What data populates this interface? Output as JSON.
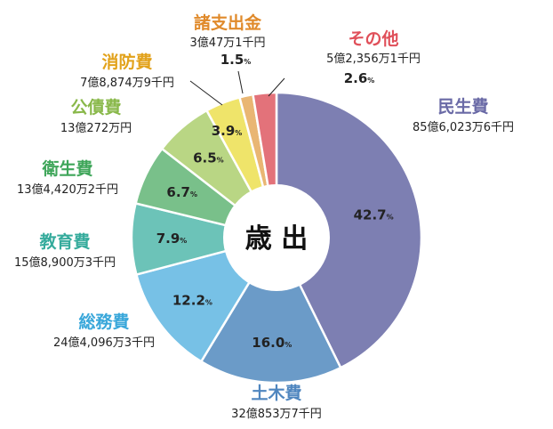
{
  "chart_data": {
    "type": "pie",
    "center_label": "歳 出",
    "percent_symbol": "%",
    "slices": [
      {
        "name": "民生費",
        "amount": "85億6,023万6千円",
        "value": 42.7,
        "value_label": "42.7",
        "color": "#7d7fb2",
        "name_color": "#6a6aa6"
      },
      {
        "name": "土木費",
        "amount": "32億853万7千円",
        "value": 16.0,
        "value_label": "16.0",
        "color": "#6b9bc8",
        "name_color": "#4f86bf"
      },
      {
        "name": "総務費",
        "amount": "24億4,096万3千円",
        "value": 12.2,
        "value_label": "12.2",
        "color": "#77c1e6",
        "name_color": "#39a7da"
      },
      {
        "name": "教育費",
        "amount": "15億8,900万3千円",
        "value": 7.9,
        "value_label": "7.9",
        "color": "#6cc3b8",
        "name_color": "#35ab9c"
      },
      {
        "name": "衛生費",
        "amount": "13億4,420万2千円",
        "value": 6.7,
        "value_label": "6.7",
        "color": "#79c08a",
        "name_color": "#3fa65a"
      },
      {
        "name": "公債費",
        "amount": "13億272万円",
        "value": 6.5,
        "value_label": "6.5",
        "color": "#b9d684",
        "name_color": "#89b84a"
      },
      {
        "name": "消防費",
        "amount": "7億8,874万9千円",
        "value": 3.9,
        "value_label": "3.9",
        "color": "#efe46a",
        "name_color": "#e2a21b"
      },
      {
        "name": "諸支出金",
        "amount": "3億47万1千円",
        "value": 1.5,
        "value_label": "1.5",
        "color": "#e9b673",
        "name_color": "#e08a2b"
      },
      {
        "name": "その他",
        "amount": "5億2,356万1千円",
        "value": 2.6,
        "value_label": "2.6",
        "color": "#e3727a",
        "name_color": "#e0505a"
      }
    ]
  }
}
